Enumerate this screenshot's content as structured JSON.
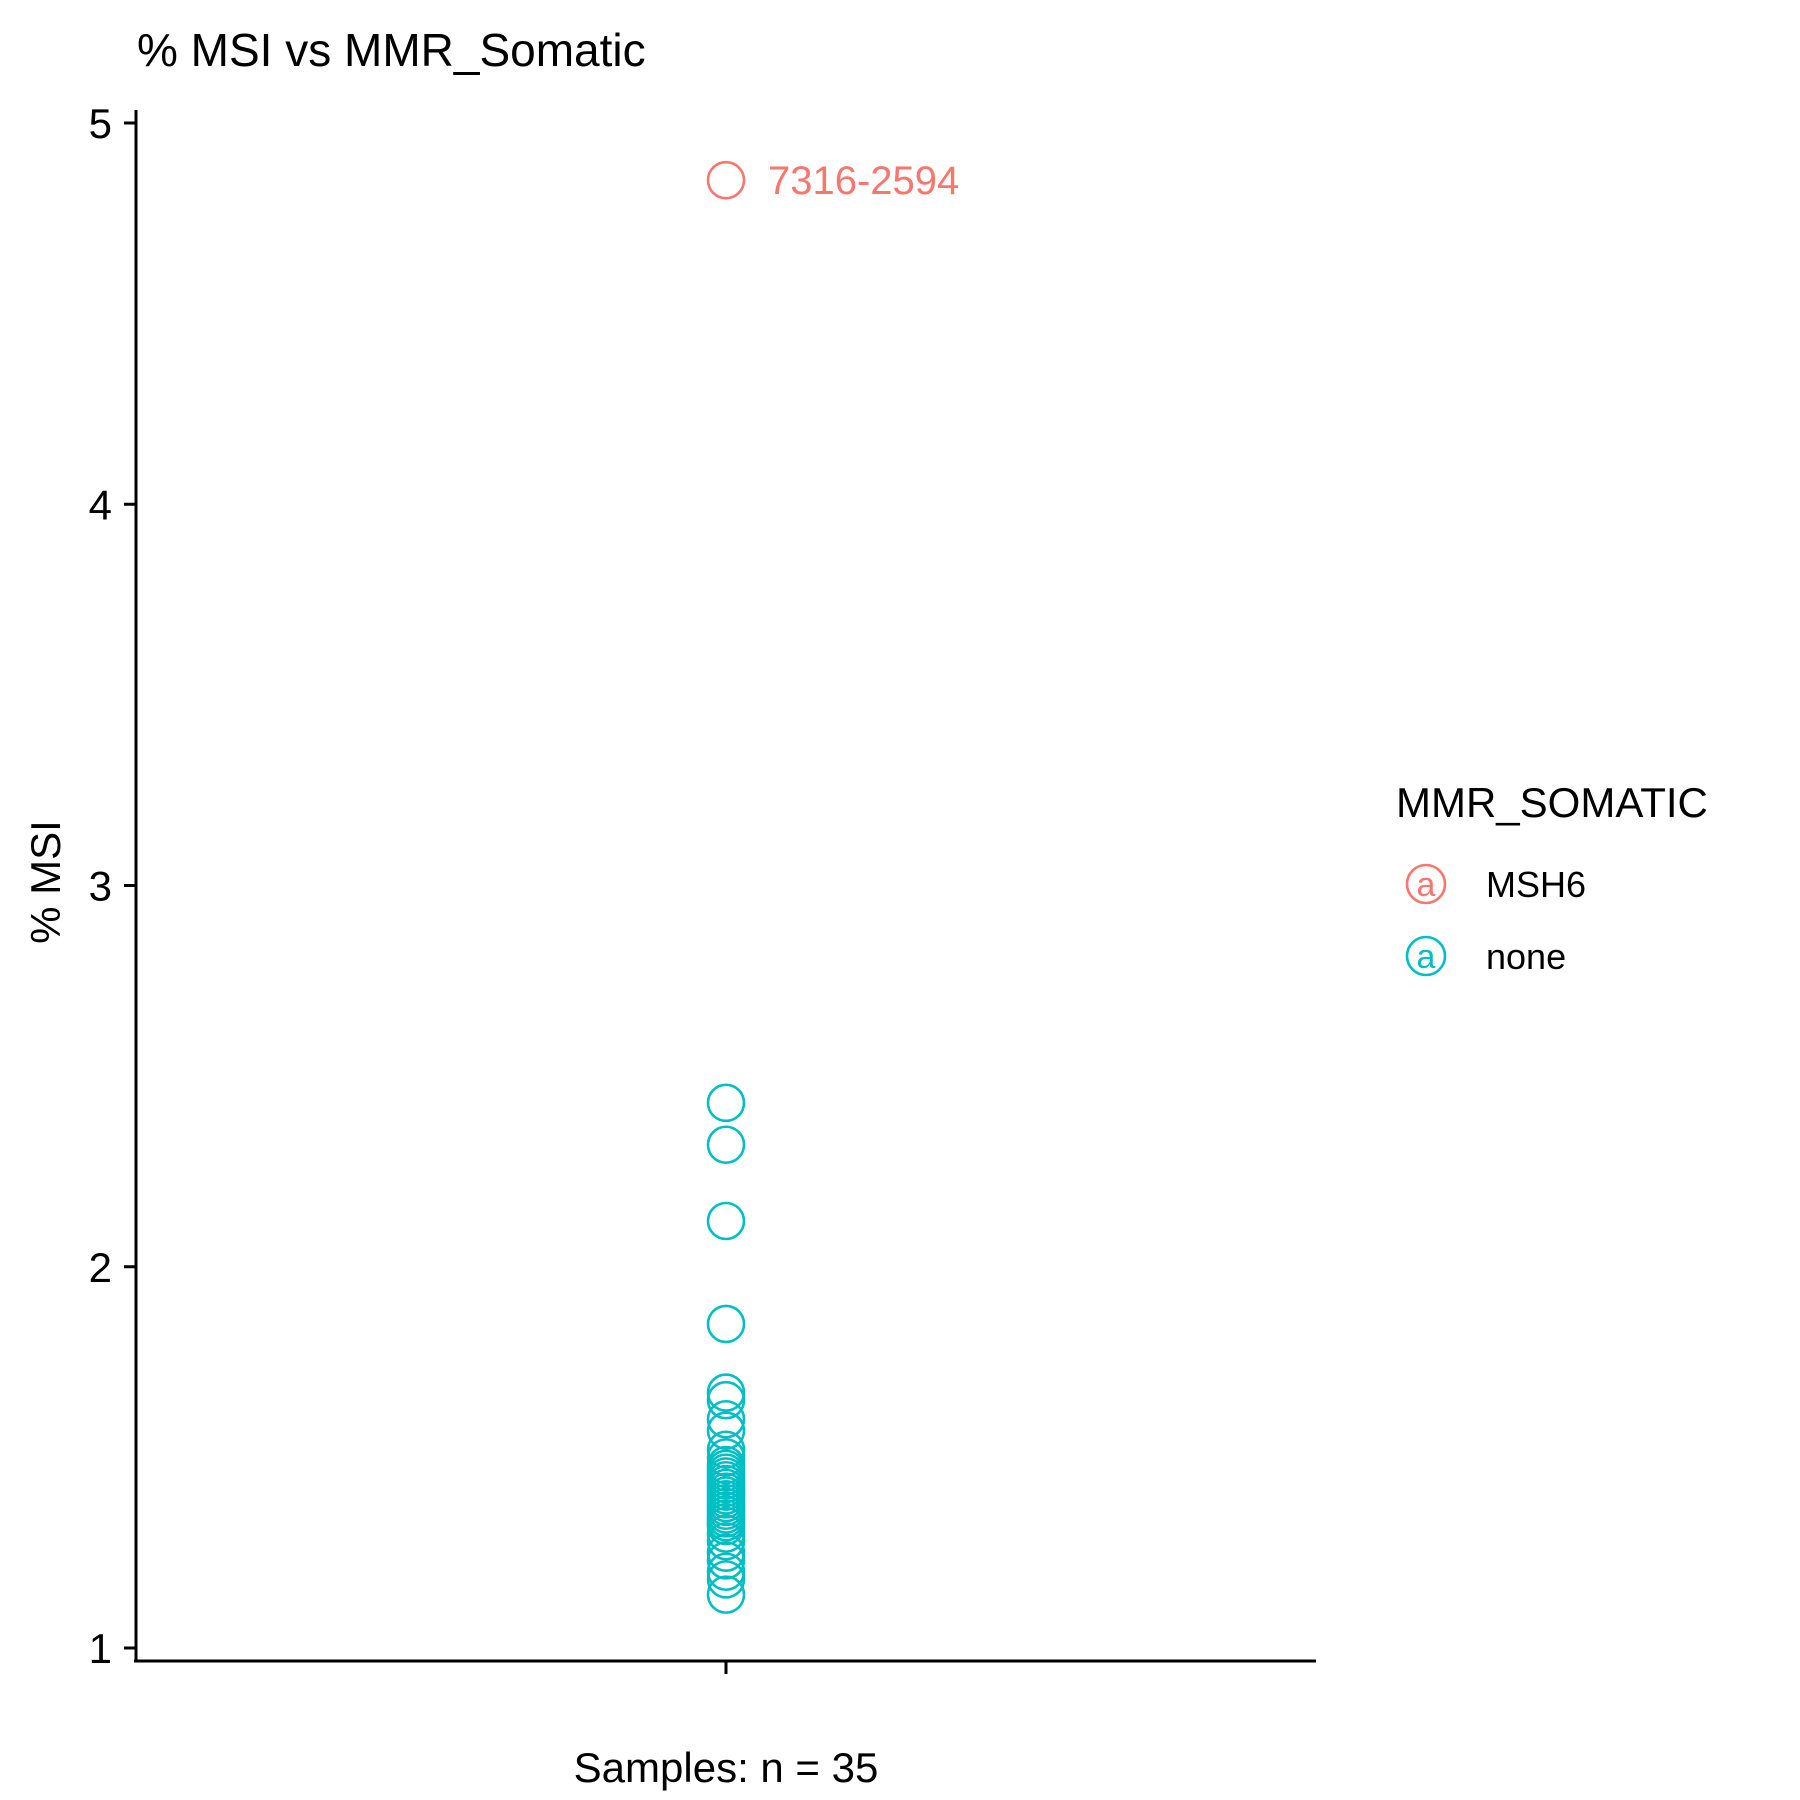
{
  "chart_data": {
    "type": "scatter",
    "title": "% MSI vs MMR_Somatic",
    "xlabel": "Samples: n = 35",
    "ylabel": "% MSI",
    "ylim": [
      1,
      5
    ],
    "y_ticks": [
      1,
      2,
      3,
      4,
      5
    ],
    "grid": false,
    "legend": {
      "title": "MMR_SOMATIC",
      "position": "right",
      "symbol": "a",
      "entries": [
        {
          "label": "MSH6",
          "color": "#F8766D"
        },
        {
          "label": "none",
          "color": "#00BFC4"
        }
      ]
    },
    "series": [
      {
        "name": "MSH6",
        "color": "#F8766D",
        "points": [
          {
            "y": 4.85,
            "label": "7316-2594"
          }
        ]
      },
      {
        "name": "none",
        "color": "#00BFC4",
        "points": [
          {
            "y": 2.43
          },
          {
            "y": 2.32
          },
          {
            "y": 2.12
          },
          {
            "y": 1.85
          },
          {
            "y": 1.67
          },
          {
            "y": 1.65
          },
          {
            "y": 1.6
          },
          {
            "y": 1.57
          },
          {
            "y": 1.52
          },
          {
            "y": 1.5
          },
          {
            "y": 1.48
          },
          {
            "y": 1.47
          },
          {
            "y": 1.46
          },
          {
            "y": 1.45
          },
          {
            "y": 1.44
          },
          {
            "y": 1.43
          },
          {
            "y": 1.42
          },
          {
            "y": 1.41
          },
          {
            "y": 1.4
          },
          {
            "y": 1.39
          },
          {
            "y": 1.38
          },
          {
            "y": 1.37
          },
          {
            "y": 1.36
          },
          {
            "y": 1.35
          },
          {
            "y": 1.34
          },
          {
            "y": 1.33
          },
          {
            "y": 1.32
          },
          {
            "y": 1.3
          },
          {
            "y": 1.28
          },
          {
            "y": 1.25
          },
          {
            "y": 1.23
          },
          {
            "y": 1.2
          },
          {
            "y": 1.18
          },
          {
            "y": 1.14
          }
        ]
      }
    ]
  }
}
